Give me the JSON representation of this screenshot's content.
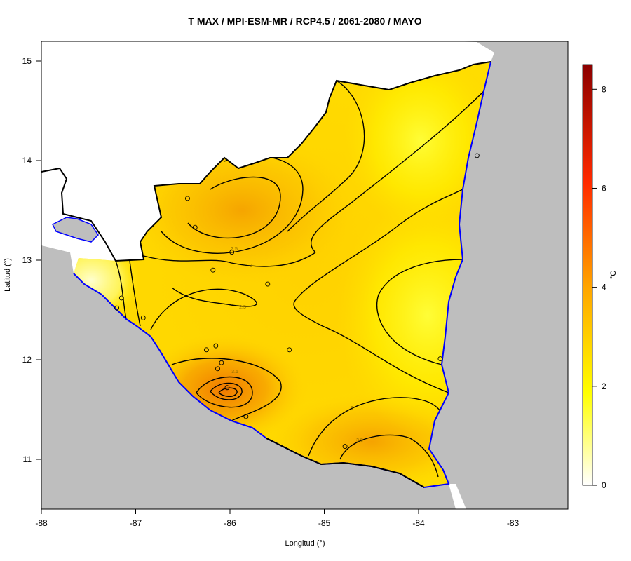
{
  "title": "T MAX / MPI-ESM-MR / RCP4.5 / 2061-2080 / MAYO",
  "x_axis": {
    "label": "Longitud (°)",
    "ticks": [
      "-88",
      "-87",
      "-86",
      "-85",
      "-84",
      "-83"
    ]
  },
  "y_axis": {
    "label": "Latitud (°)",
    "ticks": [
      "15",
      "14",
      "13",
      "12",
      "11"
    ]
  },
  "colorbar": {
    "label": "°C",
    "ticks": [
      "0",
      "2",
      "4",
      "6",
      "8"
    ],
    "range": [
      0,
      8.5
    ],
    "colors": [
      "#ffffff",
      "#ffff00",
      "#ffa500",
      "#ff2a00",
      "#8b0000"
    ]
  },
  "contour_labels": [
    "2.5",
    "3",
    "2.5",
    "3.5",
    "3",
    "3.5"
  ],
  "colors": {
    "sea_land_outside": "#bebebe",
    "coastline": "#0000ff",
    "country_border": "#000000"
  },
  "chart_data": {
    "type": "heatmap",
    "title": "T MAX / MPI-ESM-MR / RCP4.5 / 2061-2080 / MAYO",
    "xlabel": "Longitud (°)",
    "ylabel": "Latitud (°)",
    "xlim": [
      -88,
      -82.4
    ],
    "ylim": [
      10.5,
      15.2
    ],
    "colorbar_label": "°C",
    "colorbar_range": [
      0,
      8.5
    ],
    "contour_levels": [
      2.5,
      3,
      3.5
    ],
    "stations": [
      {
        "lon": -86.45,
        "lat": 13.62
      },
      {
        "lon": -86.37,
        "lat": 13.33
      },
      {
        "lon": -85.98,
        "lat": 13.08
      },
      {
        "lon": -86.18,
        "lat": 12.9
      },
      {
        "lon": -85.6,
        "lat": 12.76
      },
      {
        "lon": -87.15,
        "lat": 12.62
      },
      {
        "lon": -87.2,
        "lat": 12.52
      },
      {
        "lon": -86.92,
        "lat": 12.42
      },
      {
        "lon": -86.25,
        "lat": 12.1
      },
      {
        "lon": -86.15,
        "lat": 12.14
      },
      {
        "lon": -85.37,
        "lat": 12.1
      },
      {
        "lon": -86.09,
        "lat": 11.97
      },
      {
        "lon": -86.13,
        "lat": 11.91
      },
      {
        "lon": -86.03,
        "lat": 11.72
      },
      {
        "lon": -85.83,
        "lat": 11.43
      },
      {
        "lon": -84.78,
        "lat": 11.13
      },
      {
        "lon": -83.77,
        "lat": 12.01
      },
      {
        "lon": -83.38,
        "lat": 14.05
      }
    ]
  }
}
